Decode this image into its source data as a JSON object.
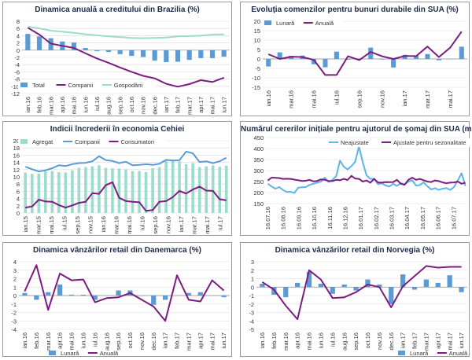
{
  "chart_data": [
    {
      "type": "combo",
      "title": "Dinamica anuală a creditului din Brazilia (%)",
      "categories": [
        "ian.16",
        "feb.16",
        "mar.16",
        "apr.16",
        "mai.16",
        "iun.16",
        "iul.16",
        "aug.16",
        "sep.16",
        "oct.16",
        "nov.16",
        "dec.16",
        "ian.17",
        "feb.17",
        "mar.17",
        "apr.17",
        "mai.17",
        "iun.17"
      ],
      "x_tick_labels": [
        "ian.16",
        "feb.16",
        "mar.16",
        "apr.16",
        "mai.16",
        "iun.16",
        "iul.16",
        "aug.16",
        "sep.16",
        "oct.16",
        "nov.16",
        "dec.16",
        "ian.17",
        "feb.17",
        "mar.17",
        "apr.17",
        "mai.17",
        "iun.17"
      ],
      "y_tick_labels": [
        "8",
        "6",
        "4",
        "2",
        "0",
        "-2",
        "-4",
        "-6",
        "-8",
        "-10",
        "-12"
      ],
      "ylim": [
        -12,
        8
      ],
      "series": [
        {
          "name": "Total",
          "kind": "bar",
          "color": "#5b9bd5",
          "values": [
            4.5,
            3.8,
            3.3,
            2.4,
            2.1,
            0.6,
            -0.3,
            -0.5,
            -1.1,
            -1.6,
            -1.9,
            -2.9,
            -3.3,
            -3.2,
            -2.7,
            -2.2,
            -2.2,
            -1.8
          ]
        },
        {
          "name": "Companii",
          "kind": "line",
          "color": "#7b1d80",
          "values": [
            6.2,
            4.3,
            1.8,
            1.2,
            0.6,
            -0.9,
            -2.3,
            -3.5,
            -4.8,
            -6.0,
            -7.1,
            -7.8,
            -9.3,
            -10.1,
            -9.4,
            -8.3,
            -8.8,
            -7.6
          ]
        },
        {
          "name": "Gospodării",
          "kind": "line",
          "color": "#9bdccc",
          "values": [
            6.5,
            6.0,
            5.4,
            5.1,
            4.8,
            4.4,
            4.1,
            3.8,
            3.6,
            3.4,
            3.3,
            3.4,
            3.5,
            3.8,
            3.9,
            4.0,
            4.3,
            4.4
          ]
        }
      ]
    },
    {
      "type": "combo",
      "title": "Evoluția comenzilor pentru bunuri durabile din SUA (%)",
      "categories": [
        "ian.16",
        "feb.16",
        "mar.16",
        "apr.16",
        "mai.16",
        "iun.16",
        "iul.16",
        "aug.16",
        "sep.16",
        "oct.16",
        "nov.16",
        "dec.16",
        "ian.17",
        "feb.17",
        "mar.17",
        "apr.17",
        "mai.17",
        "iun.17"
      ],
      "x_tick_labels": [
        "ian.16",
        "mar.16",
        "mai.16",
        "iul.16",
        "sep.16",
        "nov.16",
        "ian.17",
        "mar.17",
        "mai.17"
      ],
      "y_tick_labels": [
        "20",
        "15",
        "10",
        "5",
        "0",
        "-5",
        "-10",
        "-15"
      ],
      "ylim": [
        -15,
        20
      ],
      "series": [
        {
          "name": "Lunară",
          "kind": "bar",
          "color": "#5b9bd5",
          "values": [
            -4.0,
            3.5,
            1.6,
            1.8,
            -2.8,
            -4.4,
            3.9,
            -0.4,
            0.3,
            6.0,
            -0.3,
            -4.5,
            2.2,
            1.8,
            2.6,
            -0.7,
            -0.2,
            6.5
          ]
        },
        {
          "name": "Anuală",
          "kind": "line",
          "color": "#7b1d80",
          "values": [
            2.5,
            0.0,
            1.2,
            1.0,
            -0.5,
            -8.5,
            -8.5,
            1.4,
            -0.6,
            3.7,
            1.4,
            0.0,
            1.6,
            1.5,
            6.6,
            1.0,
            6.0,
            14.5
          ]
        }
      ]
    },
    {
      "type": "combo",
      "title": "Indicii încrederii în economia Cehiei",
      "categories": [
        "ian.15",
        "feb.15",
        "mar.15",
        "apr.15",
        "mai.15",
        "iun.15",
        "iul.15",
        "aug.15",
        "sep.15",
        "oct.15",
        "nov.15",
        "dec.15",
        "ian.16",
        "feb.16",
        "mar.16",
        "apr.16",
        "mai.16",
        "iun.16",
        "iul.16",
        "aug.16",
        "sep.16",
        "oct.16",
        "nov.16",
        "dec.16",
        "ian.17",
        "feb.17",
        "mar.17",
        "apr.17",
        "mai.17",
        "iun.17",
        "iul.17"
      ],
      "x_tick_labels": [
        "ian.15",
        "mar.15",
        "mai.15",
        "iul.15",
        "sep.15",
        "nov.15",
        "ian.16",
        "mar.16",
        "mai.16",
        "iul.16",
        "sep.16",
        "nov.16",
        "ian.17",
        "mar.17",
        "mai.17",
        "iul.17"
      ],
      "y_tick_labels": [
        "20",
        "18",
        "16",
        "14",
        "12",
        "10",
        "8",
        "6",
        "4",
        "2",
        "0"
      ],
      "ylim": [
        0,
        20
      ],
      "series": [
        {
          "name": "Agregat",
          "kind": "bar",
          "color": "#9bdccc",
          "values": [
            11.2,
            10.8,
            10.9,
            11.5,
            11.6,
            11.3,
            11.2,
            11.8,
            12.5,
            12.7,
            12.9,
            13.2,
            12.5,
            12.4,
            12.3,
            12.1,
            11.6,
            11.6,
            11.3,
            12.4,
            12.7,
            14.7,
            14.8,
            14.3,
            13.5,
            13.8,
            12.7,
            12.9,
            13.2,
            12.8,
            13.1
          ]
        },
        {
          "name": "Companii",
          "kind": "line",
          "color": "#5b9bd5",
          "values": [
            12.8,
            12.1,
            11.5,
            11.8,
            12.4,
            13.2,
            13.0,
            13.5,
            13.8,
            13.9,
            14.3,
            15.7,
            14.6,
            14.4,
            13.8,
            14.2,
            13.2,
            13.3,
            13.5,
            13.3,
            13.6,
            14.7,
            14.5,
            14.6,
            17.0,
            16.5,
            14.1,
            14.3,
            13.8,
            14.3,
            15.3
          ]
        },
        {
          "name": "Consumatori",
          "kind": "line",
          "color": "#7b1d80",
          "values": [
            1.5,
            1.8,
            3.7,
            3.2,
            3.1,
            2.2,
            1.5,
            2.1,
            2.8,
            3.1,
            5.5,
            5.3,
            7.7,
            8.5,
            4.2,
            3.3,
            3.1,
            3.0,
            0.6,
            0.8,
            3.1,
            3.3,
            4.4,
            6.1,
            5.4,
            6.5,
            7.3,
            6.2,
            6.1,
            3.8,
            3.5
          ]
        }
      ]
    },
    {
      "type": "line",
      "title": "Numărul cererilor inițiale pentru ajutorul de șomaj din SUA (mii)",
      "categories": [
        "16.07.16",
        "23.07.16",
        "30.07.16",
        "06.08.16",
        "13.08.16",
        "20.08.16",
        "27.08.16",
        "03.09.16",
        "10.09.16",
        "17.09.16",
        "24.09.16",
        "01.10.16",
        "08.10.16",
        "15.10.16",
        "22.10.16",
        "29.10.16",
        "05.11.16",
        "12.11.16",
        "19.11.16",
        "26.11.16",
        "03.12.16",
        "10.12.16",
        "17.12.16",
        "24.12.16",
        "31.12.16",
        "07.01.17",
        "14.01.17",
        "21.01.17",
        "28.01.17",
        "04.02.17",
        "11.02.17",
        "18.02.17",
        "25.02.17",
        "04.03.17",
        "11.03.17",
        "18.03.17",
        "25.03.17",
        "01.04.17",
        "08.04.17",
        "15.04.17",
        "22.04.17",
        "29.04.17",
        "06.05.17",
        "13.05.17",
        "20.05.17",
        "27.05.17",
        "03.06.17",
        "10.06.17",
        "17.06.17",
        "24.06.17",
        "01.07.17",
        "08.07.17",
        "15.07.17"
      ],
      "x_tick_labels": [
        "16.07.16",
        "16.08.16",
        "16.09.16",
        "16.10.16",
        "16.11.16",
        "16.12.16",
        "16.01.17",
        "16.02.17",
        "16.03.17",
        "16.04.17",
        "16.05.17",
        "16.06.17",
        "16.07.17"
      ],
      "y_tick_labels": [
        "450",
        "400",
        "350",
        "300",
        "250",
        "200",
        "150"
      ],
      "ylim": [
        150,
        450
      ],
      "series": [
        {
          "name": "Neajustate",
          "kind": "line",
          "color": "#5bb5e8",
          "values": [
            240,
            228,
            218,
            225,
            212,
            203,
            204,
            198,
            222,
            224,
            225,
            235,
            240,
            245,
            250,
            268,
            248,
            258,
            275,
            345,
            318,
            305,
            320,
            340,
            410,
            336,
            278,
            262,
            263,
            238,
            242,
            232,
            228,
            240,
            230,
            243,
            238,
            250,
            256,
            232,
            234,
            246,
            229,
            214,
            220,
            212,
            218,
            220,
            212,
            225,
            255,
            288,
            230
          ]
        },
        {
          "name": "Ajustate pentru sezonalitate",
          "kind": "line",
          "color": "#7b1d80",
          "values": [
            255,
            268,
            267,
            266,
            262,
            263,
            262,
            259,
            256,
            253,
            254,
            258,
            251,
            253,
            260,
            258,
            253,
            252,
            258,
            256,
            262,
            257,
            276,
            264,
            262,
            250,
            255,
            245,
            262,
            246,
            245,
            248,
            247,
            248,
            258,
            240,
            235,
            258,
            268,
            258,
            262,
            256,
            250,
            248,
            255,
            252,
            246,
            242,
            245,
            246,
            250,
            240,
            245
          ]
        }
      ]
    },
    {
      "type": "combo",
      "title": "Dinamica vânzărilor retail din Danemarca (%)",
      "categories": [
        "ian.16",
        "feb.16",
        "mar.16",
        "apr.16",
        "mai.16",
        "iun.16",
        "iul.16",
        "aug.16",
        "sep.16",
        "oct.16",
        "nov.16",
        "dec.16",
        "ian.17",
        "feb.17",
        "mar.17",
        "apr.17",
        "mai.17",
        "iun.17"
      ],
      "x_tick_labels": [
        "ian.16",
        "feb.16",
        "mar.16",
        "apr.16",
        "mai.16",
        "iun.16",
        "iul.16",
        "aug.16",
        "sep.16",
        "oct.16",
        "nov.16",
        "dec.16",
        "ian.17",
        "feb.17",
        "mar.17",
        "apr.17",
        "mai.17",
        "iun.17"
      ],
      "y_tick_labels": [
        "4",
        "3",
        "2",
        "1",
        "0",
        "-1",
        "-2",
        "-3",
        "-4"
      ],
      "ylim": [
        -4,
        4
      ],
      "series": [
        {
          "name": "Lunară",
          "kind": "bar",
          "color": "#5b9bd5",
          "values": [
            0.3,
            -0.5,
            0.4,
            1.3,
            0.1,
            0.1,
            -0.5,
            0.0,
            0.6,
            0.6,
            0.0,
            -1.1,
            -0.5,
            0.0,
            0.3,
            0.4,
            0.0,
            -0.2
          ]
        },
        {
          "name": "Anuală",
          "kind": "line",
          "color": "#7b1d80",
          "values": [
            0.5,
            3.6,
            -1.7,
            2.6,
            1.8,
            1.9,
            -0.8,
            -0.3,
            -0.2,
            0.3,
            -0.5,
            -1.3,
            -3.0,
            2.4,
            -0.5,
            -0.7,
            1.8,
            0.6
          ]
        }
      ]
    },
    {
      "type": "combo",
      "title": "Dinamica vânzărilor retail din Norvegia (%)",
      "categories": [
        "ian.16",
        "feb.16",
        "mar.16",
        "apr.16",
        "mai.16",
        "iun.16",
        "iul.16",
        "aug.16",
        "sep.16",
        "oct.16",
        "nov.16",
        "dec.16",
        "ian.17",
        "feb.17",
        "mar.17",
        "apr.17",
        "mai.17",
        "iun.17"
      ],
      "x_tick_labels": [
        "ian.16",
        "feb.16",
        "mar.16",
        "apr.16",
        "mai.16",
        "iun.16",
        "iul.16",
        "aug.16",
        "sep.16",
        "oct.16",
        "nov.16",
        "dec.16",
        "ian.17",
        "feb.17",
        "mar.17",
        "apr.17",
        "mai.17",
        "iun.17"
      ],
      "y_tick_labels": [
        "3",
        "2",
        "1",
        "0",
        "-1",
        "-2",
        "-3",
        "-4",
        "-5"
      ],
      "ylim": [
        -5,
        3
      ],
      "series": [
        {
          "name": "Lunară",
          "kind": "bar",
          "color": "#5b9bd5",
          "values": [
            0.4,
            -0.9,
            -1.2,
            0.5,
            1.8,
            0.4,
            -0.8,
            0.3,
            -0.4,
            0.9,
            0.3,
            -2.0,
            1.5,
            -0.3,
            0.9,
            0.5,
            1.4,
            -0.6
          ]
        },
        {
          "name": "Anuală",
          "kind": "line",
          "color": "#7b1d80",
          "values": [
            0.6,
            -0.3,
            -2.2,
            -3.8,
            2.0,
            0.9,
            -1.3,
            -1.2,
            -0.6,
            0.3,
            0.0,
            -2.4,
            0.1,
            1.3,
            2.5,
            2.3,
            2.4,
            2.4
          ]
        }
      ]
    }
  ]
}
